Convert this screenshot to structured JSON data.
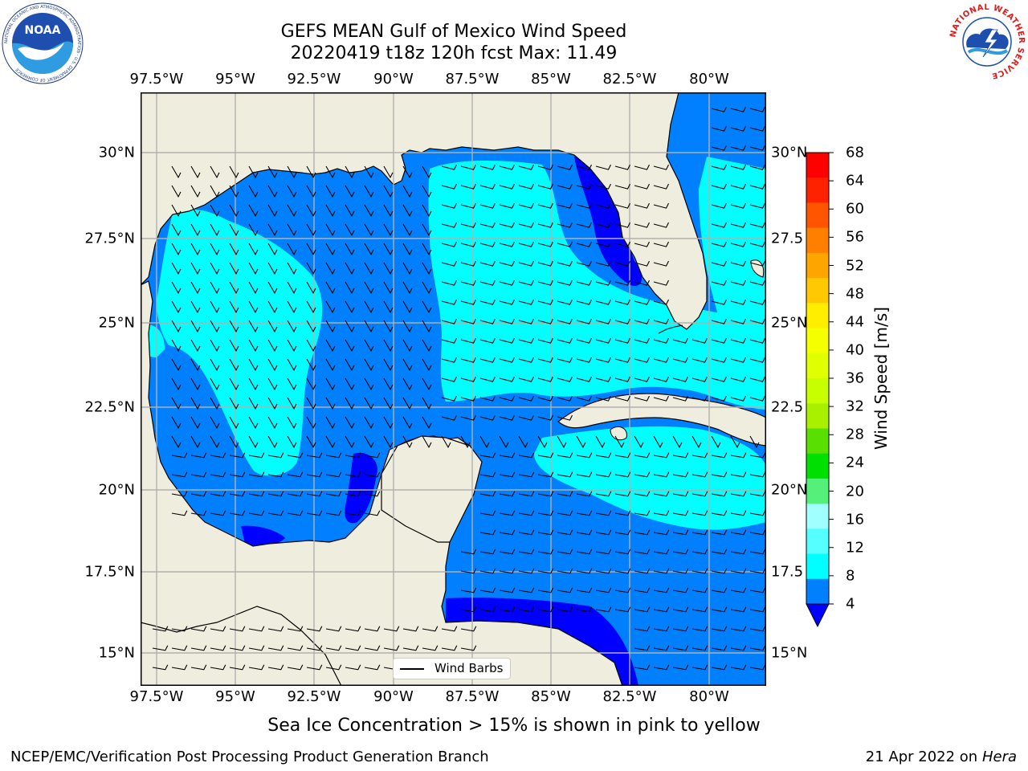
{
  "title_line1": "GEFS MEAN Gulf of Mexico Wind Speed",
  "title_line2": "20220419 t18z 120h fcst   Max: 11.49",
  "lon_ticks": [
    "97.5°W",
    "95°W",
    "92.5°W",
    "90°W",
    "87.5°W",
    "85°W",
    "82.5°W",
    "80°W"
  ],
  "lat_ticks_left": [
    "30°N",
    "27.5°N",
    "25°N",
    "22.5°N",
    "20°N",
    "17.5°N",
    "15°N"
  ],
  "lat_ticks_right": [
    "30°N",
    "27.5",
    "25°N",
    "22.5",
    "20°N",
    "17.5",
    "15°N"
  ],
  "legend_label": "Wind Barbs",
  "colorbar": {
    "title": "Wind Speed [m/s]",
    "labels": [
      "68",
      "64",
      "60",
      "56",
      "52",
      "48",
      "44",
      "40",
      "36",
      "32",
      "28",
      "24",
      "20",
      "16",
      "12",
      "8",
      "4"
    ],
    "colors": [
      "#ff0000",
      "#ff2200",
      "#ff5500",
      "#ff7f00",
      "#ffa500",
      "#ffc800",
      "#ffee00",
      "#f5ff00",
      "#e0ff00",
      "#c8ff00",
      "#a8f000",
      "#5ae000",
      "#00e000",
      "#55f07a",
      "#a0ffff",
      "#55ffff",
      "#00ffff",
      "#0080ff"
    ],
    "extend_color": "#0000ff"
  },
  "footnote": "Sea Ice Concentration > 15% is shown in pink to yellow",
  "credit": "NCEP/EMC/Verification Post Processing Product Generation Branch",
  "date_text": "21 Apr 2022 on ",
  "machine": "Hera",
  "logos": {
    "noaa": "NOAA",
    "noaa_ring": "NATIONAL OCEANIC AND ATMOSPHERIC ADMINISTRATION · U.S. DEPARTMENT OF COMMERCE",
    "nws_ring": "NATIONAL WEATHER SERVICE"
  },
  "colors": {
    "land": "#efedde",
    "ocean_low": "#0080ff",
    "ocean_mid": "#00ffff",
    "ocean_calm": "#0000ff"
  }
}
